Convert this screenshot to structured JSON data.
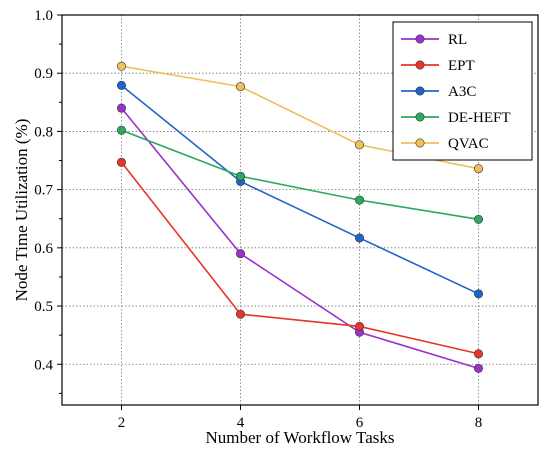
{
  "chart_data": {
    "type": "line",
    "title": "",
    "xlabel": "Number of Workflow Tasks",
    "ylabel": "Node Time Utilization (%)",
    "x": [
      2,
      4,
      6,
      8
    ],
    "x_ticks": [
      "2",
      "4",
      "6",
      "8"
    ],
    "xlim": [
      1,
      9
    ],
    "ylim": [
      0.33,
      1.0
    ],
    "y_ticks": [
      "0.4",
      "0.5",
      "0.6",
      "0.7",
      "0.8",
      "0.9",
      "1.0"
    ],
    "grid": true,
    "legend_position": "top-right",
    "series": [
      {
        "name": "RL",
        "color": "#9932CC",
        "values": [
          0.84,
          0.59,
          0.455,
          0.393
        ]
      },
      {
        "name": "EPT",
        "color": "#E8342A",
        "values": [
          0.747,
          0.486,
          0.465,
          0.418
        ]
      },
      {
        "name": "A3C",
        "color": "#1F64C8",
        "values": [
          0.879,
          0.714,
          0.617,
          0.521
        ]
      },
      {
        "name": "DE-HEFT",
        "color": "#2CA85F",
        "values": [
          0.802,
          0.723,
          0.682,
          0.649
        ]
      },
      {
        "name": "QVAC",
        "color": "#F0C05A",
        "values": [
          0.912,
          0.877,
          0.777,
          0.736
        ]
      }
    ]
  }
}
